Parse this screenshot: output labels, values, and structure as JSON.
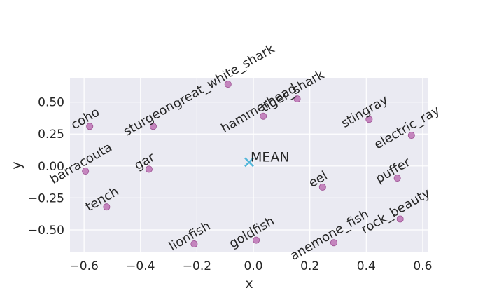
{
  "chart_data": {
    "type": "scatter",
    "title": "",
    "xlabel": "x",
    "ylabel": "y",
    "xlim": [
      -0.65,
      0.62
    ],
    "ylim": [
      -0.67,
      0.69
    ],
    "xticks": [
      -0.6,
      -0.4,
      -0.2,
      0.0,
      0.2,
      0.4,
      0.6
    ],
    "xtick_labels": [
      "−0.6",
      "−0.4",
      "−0.2",
      "0.0",
      "0.2",
      "0.4",
      "0.6"
    ],
    "yticks": [
      -0.5,
      -0.25,
      0.0,
      0.25,
      0.5
    ],
    "ytick_labels": [
      "−0.50",
      "−0.25",
      "0.00",
      "0.25",
      "0.50"
    ],
    "grid": true,
    "point_color": "#c07ab8",
    "point_edge": "#9c4f93",
    "mean_color": "#4fb5d9",
    "background": "#eaeaf2",
    "points": [
      {
        "label": "coho",
        "x": -0.58,
        "y": 0.31
      },
      {
        "label": "sturgeon",
        "x": -0.355,
        "y": 0.31
      },
      {
        "label": "barracouta",
        "x": -0.595,
        "y": -0.04
      },
      {
        "label": "gar",
        "x": -0.37,
        "y": -0.025
      },
      {
        "label": "tench",
        "x": -0.52,
        "y": -0.32
      },
      {
        "label": "lionfish",
        "x": -0.21,
        "y": -0.61
      },
      {
        "label": "goldfish",
        "x": 0.01,
        "y": -0.58
      },
      {
        "label": "great_white_shark",
        "x": -0.09,
        "y": 0.64
      },
      {
        "label": "hammerhead",
        "x": 0.035,
        "y": 0.39
      },
      {
        "label": "tiger_shark",
        "x": 0.155,
        "y": 0.525
      },
      {
        "label": "stingray",
        "x": 0.41,
        "y": 0.365
      },
      {
        "label": "electric_ray",
        "x": 0.56,
        "y": 0.24
      },
      {
        "label": "eel",
        "x": 0.245,
        "y": -0.165
      },
      {
        "label": "puffer",
        "x": 0.51,
        "y": -0.095
      },
      {
        "label": "anemone_fish",
        "x": 0.285,
        "y": -0.6
      },
      {
        "label": "rock_beauty",
        "x": 0.52,
        "y": -0.415
      }
    ],
    "mean": {
      "label": "MEAN",
      "x": -0.015,
      "y": 0.03
    }
  }
}
